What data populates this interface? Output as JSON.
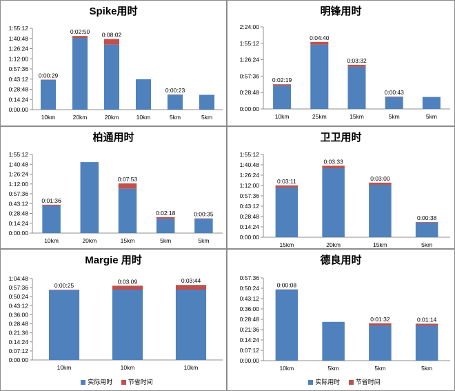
{
  "colors": {
    "actual": "#4f81bd",
    "saved": "#c0504d",
    "grid": "#8c8c8c"
  },
  "legend": {
    "actual": "实际用时",
    "saved": "节省时间"
  },
  "chart_data": [
    {
      "id": "spike",
      "type": "bar",
      "stacked": true,
      "title": "Spike用时",
      "categories": [
        "10km",
        "20km",
        "20km",
        "10km",
        "5km",
        "5km"
      ],
      "yticks": [
        "0:00:00",
        "0:14:24",
        "0:28:48",
        "0:43:12",
        "0:57:36",
        "1:12:00",
        "1:26:24",
        "1:40:48",
        "1:55:12"
      ],
      "ylim_minutes": [
        0,
        115.2
      ],
      "series": [
        {
          "name": "实际用时",
          "values_minutes": [
            42,
            101.5,
            92,
            43,
            21,
            21
          ]
        },
        {
          "name": "节省时间",
          "values_minutes": [
            0.48,
            2.83,
            8.03,
            0,
            0.38,
            0
          ]
        }
      ],
      "labels": [
        "0:00:29",
        "0:02:50",
        "0:08:02",
        "",
        "0:00:23",
        ""
      ]
    },
    {
      "id": "mingfeng",
      "type": "bar",
      "stacked": true,
      "title": "明锋用时",
      "categories": [
        "10km",
        "25km",
        "15km",
        "5km",
        "5km"
      ],
      "yticks": [
        "0:00:00",
        "0:28:48",
        "0:57:36",
        "1:26:24",
        "1:55:12",
        "2:24:00"
      ],
      "ylim_minutes": [
        0,
        144
      ],
      "series": [
        {
          "name": "实际用时",
          "values_minutes": [
            41,
            113,
            74,
            21,
            21
          ]
        },
        {
          "name": "节省时间",
          "values_minutes": [
            2.32,
            4.67,
            3.53,
            0.72,
            0
          ]
        }
      ],
      "labels": [
        "0:02:19",
        "0:04:40",
        "0:03:32",
        "0:00:43",
        ""
      ]
    },
    {
      "id": "baitong",
      "type": "bar",
      "stacked": true,
      "title": "柏通用时",
      "categories": [
        "10km",
        "20km",
        "15km",
        "5km",
        "5km"
      ],
      "yticks": [
        "0:00:00",
        "0:14:24",
        "0:28:48",
        "0:43:12",
        "0:57:36",
        "1:12:00",
        "1:26:24",
        "1:40:48",
        "1:55:12"
      ],
      "ylim_minutes": [
        0,
        115.2
      ],
      "series": [
        {
          "name": "实际用时",
          "values_minutes": [
            40,
            104,
            65,
            21,
            21
          ]
        },
        {
          "name": "节省时间",
          "values_minutes": [
            1.6,
            0,
            7.88,
            2.3,
            0.58
          ]
        }
      ],
      "labels": [
        "0:01:36",
        "",
        "0:07:53",
        "0:02:18",
        "0:00:35"
      ]
    },
    {
      "id": "weiwei",
      "type": "bar",
      "stacked": true,
      "title": "卫卫用时",
      "categories": [
        "15km",
        "20km",
        "15km",
        "5km"
      ],
      "yticks": [
        "0:00:00",
        "0:14:24",
        "0:28:48",
        "0:43:12",
        "0:57:36",
        "1:12:00",
        "1:26:24",
        "1:40:48",
        "1:55:12"
      ],
      "ylim_minutes": [
        0,
        115.2
      ],
      "series": [
        {
          "name": "实际用时",
          "values_minutes": [
            69,
            96,
            73,
            20.5
          ]
        },
        {
          "name": "节省时间",
          "values_minutes": [
            3.18,
            3.55,
            3,
            0.63
          ]
        }
      ],
      "labels": [
        "0:03:11",
        "0:03:33",
        "0:03:00",
        "0:00:38"
      ]
    },
    {
      "id": "margie",
      "type": "bar",
      "stacked": true,
      "title": "Margie 用时",
      "categories": [
        "10km",
        "10km",
        "10km"
      ],
      "yticks": [
        "0:00:00",
        "0:07:12",
        "0:14:24",
        "0:21:36",
        "0:28:48",
        "0:36:00",
        "0:43:12",
        "0:50:24",
        "0:57:36",
        "1:04:48"
      ],
      "ylim_minutes": [
        0,
        64.8
      ],
      "series": [
        {
          "name": "实际用时",
          "values_minutes": [
            55.5,
            56,
            56
          ]
        },
        {
          "name": "节省时间",
          "values_minutes": [
            0.42,
            3.15,
            3.73
          ]
        }
      ],
      "labels": [
        "0:00:25",
        "0:03:09",
        "0:03:44"
      ],
      "legend": true
    },
    {
      "id": "deliang",
      "type": "bar",
      "stacked": true,
      "title": "德良用时",
      "categories": [
        "10km",
        "5km",
        "5km",
        "5km"
      ],
      "yticks": [
        "0:00:00",
        "0:07:12",
        "0:14:24",
        "0:21:36",
        "0:28:48",
        "0:36:00",
        "0:43:12",
        "0:50:24",
        "0:57:36"
      ],
      "ylim_minutes": [
        0,
        57.6
      ],
      "series": [
        {
          "name": "实际用时",
          "values_minutes": [
            49.5,
            27,
            24.5,
            24.5
          ]
        },
        {
          "name": "节省时间",
          "values_minutes": [
            0.13,
            0,
            1.53,
            1.23
          ]
        }
      ],
      "labels": [
        "0:00:08",
        "",
        "0:01:32",
        "0:01:14"
      ],
      "legend": true
    }
  ]
}
